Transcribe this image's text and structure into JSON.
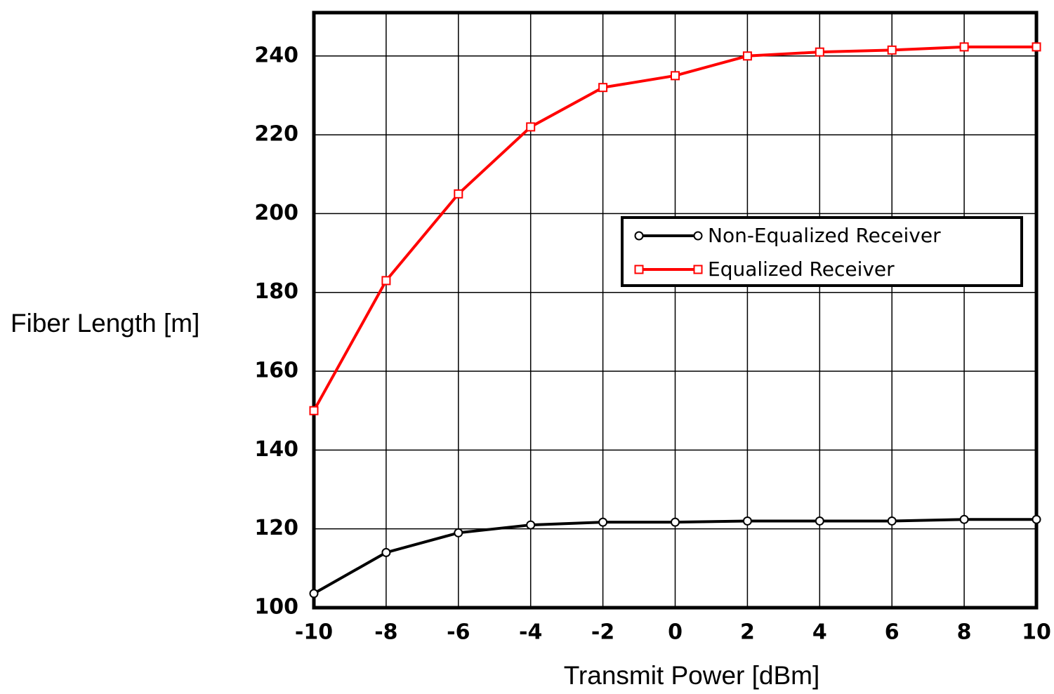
{
  "chart_data": {
    "type": "line",
    "x_label": "Transmit Power [dBm]",
    "y_label": "Fiber Length [m]",
    "x": [
      -10,
      -8,
      -6,
      -4,
      -2,
      0,
      2,
      4,
      6,
      8,
      10
    ],
    "series": [
      {
        "name": "Non-Equalized Receiver",
        "color": "#000000",
        "marker": "circle",
        "values": [
          103.6,
          114,
          119,
          121,
          121.7,
          121.7,
          122,
          122,
          122,
          122.4,
          122.4
        ]
      },
      {
        "name": "Equalized Receiver",
        "color": "#ff0000",
        "marker": "square",
        "values": [
          150,
          183,
          205,
          222,
          232,
          235,
          240,
          241,
          241.5,
          242.3,
          242.3
        ]
      }
    ],
    "xlim": [
      -10,
      10
    ],
    "xticks": [
      -10,
      -8,
      -6,
      -4,
      -2,
      0,
      2,
      4,
      6,
      8,
      10
    ],
    "ylim": [
      100,
      251
    ],
    "yticks": [
      100,
      120,
      140,
      160,
      180,
      200,
      220,
      240
    ],
    "grid": true,
    "legend": "center right"
  }
}
